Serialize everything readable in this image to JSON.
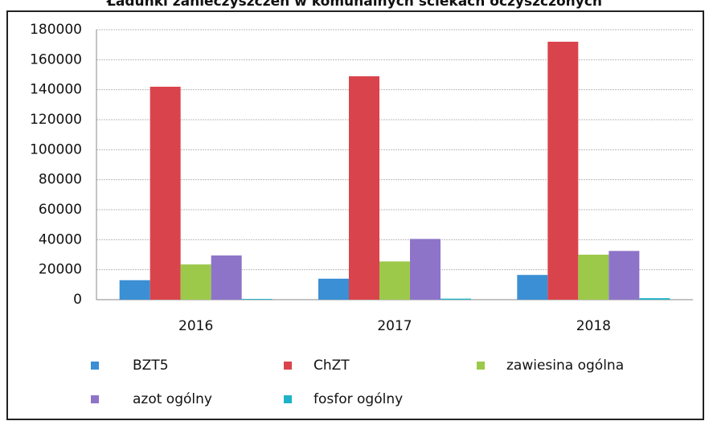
{
  "chart_data": {
    "type": "bar",
    "title": "Ładunki zanieczyszczeń w komunalnych ściekach oczyszczonych",
    "categories": [
      "2016",
      "2017",
      "2018"
    ],
    "series": [
      {
        "name": "BZT5",
        "color": "#3b8fd4",
        "values": [
          13000,
          14000,
          16500
        ]
      },
      {
        "name": "ChZT",
        "color": "#d9444c",
        "values": [
          142000,
          149000,
          172000
        ]
      },
      {
        "name": "zawiesina ogólna",
        "color": "#9cc94a",
        "values": [
          23500,
          25500,
          30000
        ]
      },
      {
        "name": "azot ogólny",
        "color": "#8d74c9",
        "values": [
          29500,
          40500,
          32500
        ]
      },
      {
        "name": "fosfor ogólny",
        "color": "#1eb3c8",
        "values": [
          500,
          700,
          1000
        ]
      }
    ],
    "ylim": [
      0,
      180000
    ],
    "yticks": [
      0,
      20000,
      40000,
      60000,
      80000,
      100000,
      120000,
      140000,
      160000,
      180000
    ],
    "grid": true
  }
}
